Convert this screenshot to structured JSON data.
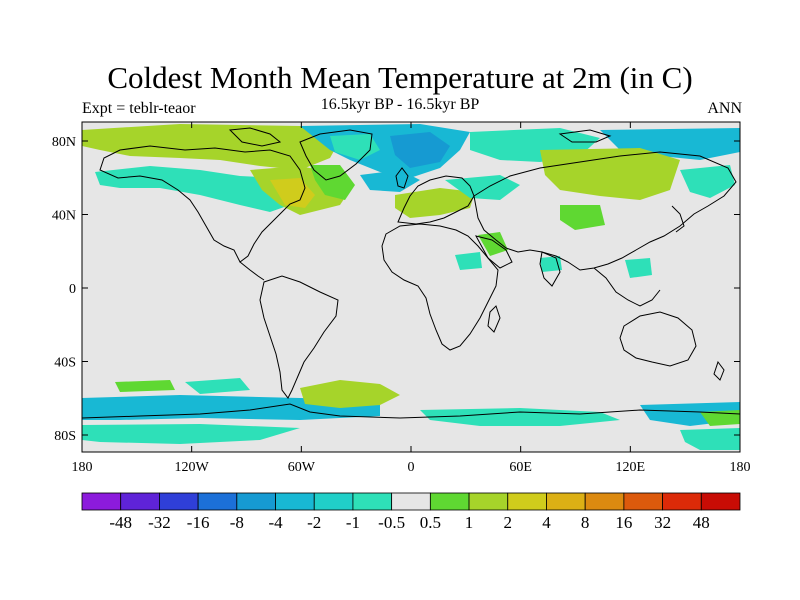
{
  "title": "Coldest Month Mean Temperature at 2m (in C)",
  "left_label": "Expt = teblr-teaor",
  "center_label": "16.5kyr BP - 16.5kyr BP",
  "right_label": "ANN",
  "x_ticks": [
    "180",
    "120W",
    "60W",
    "0",
    "60E",
    "120E",
    "180"
  ],
  "y_ticks": [
    "80N",
    "40N",
    "0",
    "40S",
    "80S"
  ],
  "colorbar": {
    "labels": [
      "-48",
      "-32",
      "-16",
      "-8",
      "-4",
      "-2",
      "-1",
      "-0.5",
      "0.5",
      "1",
      "2",
      "4",
      "8",
      "16",
      "32",
      "48"
    ],
    "colors": [
      "#8c1bdc",
      "#5f23d8",
      "#2f3fd8",
      "#1c70d8",
      "#169ad2",
      "#18b8d4",
      "#20cfc8",
      "#2ee0b8",
      "#e6e6e6",
      "#5fd832",
      "#a6d42a",
      "#d0cc1c",
      "#dcb015",
      "#dc8a10",
      "#dc5a0c",
      "#dc2a08",
      "#c80c05"
    ]
  },
  "colors": {
    "land_ocean": "#e6e6e6",
    "coast": "#000000"
  }
}
